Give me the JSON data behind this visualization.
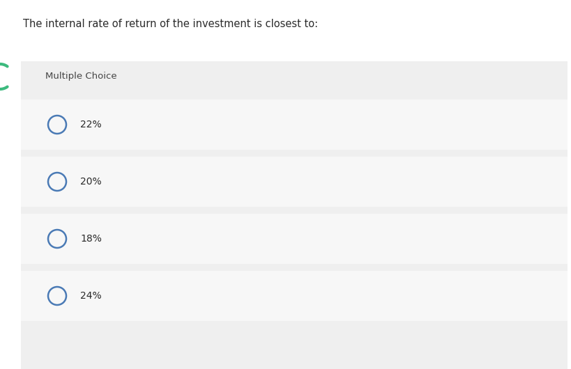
{
  "question": "The internal rate of return of the investment is closest to:",
  "section_label": "Multiple Choice",
  "choices": [
    "22%",
    "20%",
    "18%",
    "24%"
  ],
  "bg_color": "#ffffff",
  "section_bg": "#efefef",
  "option_bg_light": "#f7f7f7",
  "option_bg_dark": "#eeeeee",
  "circle_color": "#4a7ab5",
  "text_color": "#2a2a2a",
  "label_color": "#444444",
  "green_arc_color": "#3dba7e",
  "question_fontsize": 10.5,
  "label_fontsize": 9.5,
  "choice_fontsize": 10.0,
  "fig_width": 8.19,
  "fig_height": 5.3,
  "dpi": 100
}
